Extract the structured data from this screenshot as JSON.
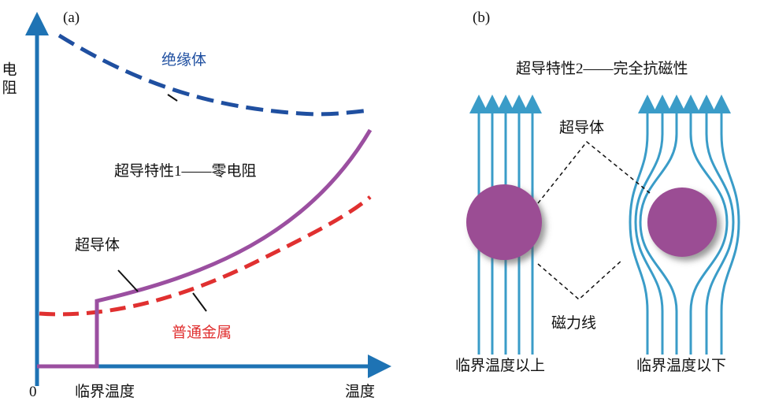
{
  "panel_a": {
    "label": "(a)",
    "y_axis_label": "电阻",
    "insulator": "绝缘体",
    "title": "超导特性1——零电阻",
    "superconductor": "超导体",
    "metal": "普通金属",
    "origin": "0",
    "critical_temp": "临界温度",
    "x_axis_label": "温度"
  },
  "panel_b": {
    "label": "(b)",
    "title": "超导特性2——完全抗磁性",
    "superconductor": "超导体",
    "field_lines": "磁力线",
    "above": "临界温度以上",
    "below": "临界温度以下"
  }
}
